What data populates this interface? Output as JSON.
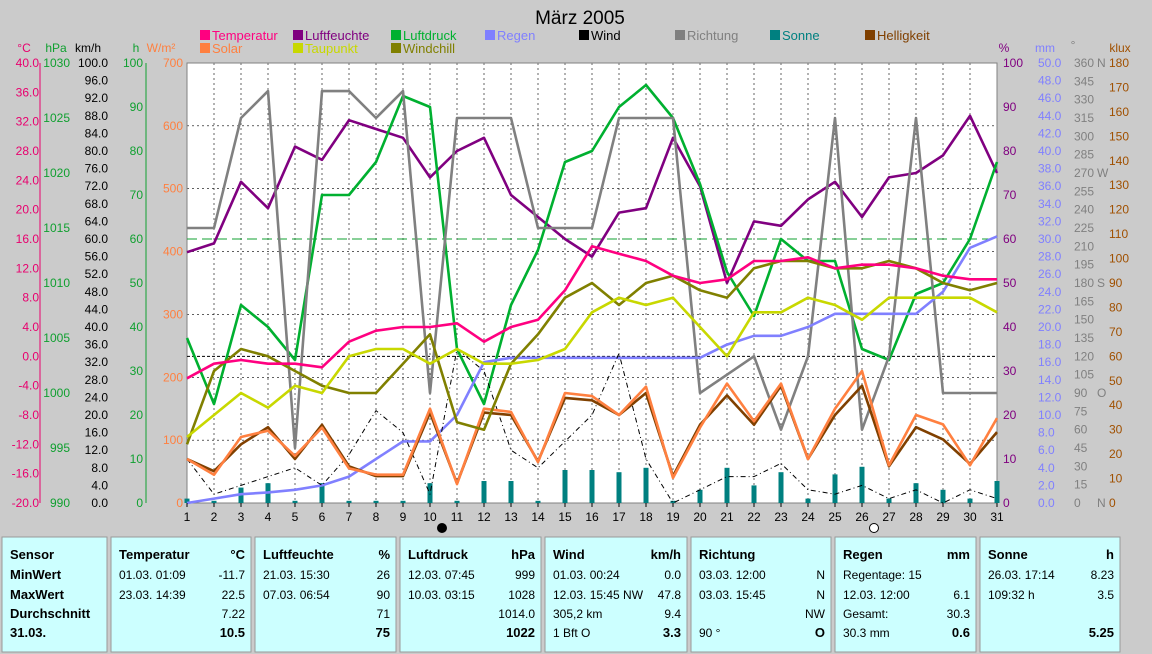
{
  "chart_data": {
    "type": "line",
    "title": "März 2005",
    "x": [
      1,
      2,
      3,
      4,
      5,
      6,
      7,
      8,
      9,
      10,
      11,
      12,
      13,
      14,
      15,
      16,
      17,
      18,
      19,
      20,
      21,
      22,
      23,
      24,
      25,
      26,
      27,
      28,
      29,
      30,
      31
    ],
    "axes": [
      {
        "id": "degC",
        "label": "°C",
        "color": "#e8006e",
        "min": -20,
        "max": 40,
        "ticks": [
          "40.0",
          "36.0",
          "32.0",
          "28.0",
          "24.0",
          "20.0",
          "16.0",
          "12.0",
          "8.0",
          "4.0",
          "0.0",
          "-4.0",
          "-8.0",
          "-12.0",
          "-16.0",
          "-20.0"
        ]
      },
      {
        "id": "hPa",
        "label": "hPa",
        "color": "#10a030",
        "min": 990,
        "max": 1030,
        "ticks": [
          "1030",
          "1025",
          "1020",
          "1015",
          "1010",
          "1005",
          "1000",
          "995",
          "990"
        ]
      },
      {
        "id": "kmh",
        "label": "km/h",
        "color": "#000000",
        "min": 0,
        "max": 100,
        "ticks": [
          "100.0",
          "96.0",
          "92.0",
          "88.0",
          "84.0",
          "80.0",
          "76.0",
          "72.0",
          "68.0",
          "64.0",
          "60.0",
          "56.0",
          "52.0",
          "48.0",
          "44.0",
          "40.0",
          "36.0",
          "32.0",
          "28.0",
          "24.0",
          "20.0",
          "16.0",
          "12.0",
          "8.0",
          "4.0",
          "0.0"
        ]
      },
      {
        "id": "h",
        "label": "h",
        "color": "#10a030",
        "min": 0,
        "max": 100,
        "ticks": [
          "100",
          "90",
          "80",
          "70",
          "60",
          "50",
          "40",
          "30",
          "20",
          "10",
          "0"
        ]
      },
      {
        "id": "wm2",
        "label": "W/m²",
        "color": "#ff8040",
        "min": 0,
        "max": 700,
        "ticks": [
          "700",
          "600",
          "500",
          "400",
          "300",
          "200",
          "100",
          "0"
        ]
      },
      {
        "id": "pct",
        "label": "%",
        "color": "#800080",
        "min": 0,
        "max": 100,
        "ticks": [
          "100",
          "90",
          "80",
          "70",
          "60",
          "50",
          "40",
          "30",
          "20",
          "10",
          "0"
        ]
      },
      {
        "id": "mm",
        "label": "mm",
        "color": "#8080ff",
        "min": 0,
        "max": 50,
        "ticks": [
          "50.0",
          "48.0",
          "46.0",
          "44.0",
          "42.0",
          "40.0",
          "38.0",
          "36.0",
          "34.0",
          "32.0",
          "30.0",
          "28.0",
          "26.0",
          "24.0",
          "22.0",
          "20.0",
          "18.0",
          "16.0",
          "14.0",
          "12.0",
          "10.0",
          "8.0",
          "6.0",
          "4.0",
          "2.0",
          "0.0"
        ]
      },
      {
        "id": "deg",
        "label": "°",
        "color": "#808080",
        "min": 0,
        "max": 360,
        "ticks": [
          "360",
          "345",
          "330",
          "315",
          "300",
          "285",
          "270",
          "255",
          "240",
          "225",
          "210",
          "195",
          "180",
          "165",
          "150",
          "135",
          "120",
          "105",
          "90",
          "75",
          "60",
          "45",
          "30",
          "15",
          "0"
        ]
      },
      {
        "id": "klux",
        "label": "klux",
        "color": "#a05000",
        "min": 0,
        "max": 180,
        "ticks": [
          "180",
          "170",
          "160",
          "150",
          "140",
          "130",
          "120",
          "110",
          "100",
          "90",
          "80",
          "70",
          "60",
          "50",
          "40",
          "30",
          "20",
          "10",
          "0"
        ]
      }
    ],
    "compass_labels": [
      "N",
      "W",
      "S",
      "O",
      "N"
    ],
    "legend": [
      {
        "name": "Temperatur",
        "color": "#ff0080"
      },
      {
        "name": "Luftfeuchte",
        "color": "#800080"
      },
      {
        "name": "Luftdruck",
        "color": "#00b030"
      },
      {
        "name": "Regen",
        "color": "#8080ff"
      },
      {
        "name": "Wind",
        "color": "#000000"
      },
      {
        "name": "Richtung",
        "color": "#808080"
      },
      {
        "name": "Sonne",
        "color": "#008080"
      },
      {
        "name": "Helligkeit",
        "color": "#804000"
      },
      {
        "name": "Solar",
        "color": "#ff8040"
      },
      {
        "name": "Taupunkt",
        "color": "#c8d800"
      },
      {
        "name": "Windchill",
        "color": "#808000"
      }
    ],
    "reference_lines": [
      {
        "axis": "hPa",
        "value": 1014,
        "color": "#10a030",
        "dash": "10,5"
      },
      {
        "axis": "degC",
        "value": 0,
        "color": "#000000",
        "dash": "3,2"
      }
    ],
    "series": [
      {
        "name": "Luftfeuchte",
        "axis": "pct",
        "color": "#800080",
        "values": [
          57,
          59,
          73,
          67,
          81,
          78,
          87,
          85,
          83,
          74,
          80,
          83,
          70,
          65,
          60,
          56,
          66,
          67,
          83,
          72,
          50,
          64,
          63,
          69,
          73,
          65,
          74,
          75,
          79,
          88,
          75
        ]
      },
      {
        "name": "Luftdruck",
        "axis": "hPa",
        "color": "#00b030",
        "values": [
          1005,
          999,
          1008,
          1006,
          1003,
          1018,
          1018,
          1021,
          1027,
          1026,
          1004,
          999,
          1008,
          1013,
          1021,
          1022,
          1026,
          1028,
          1025,
          1019,
          1011,
          1007,
          1014,
          1012,
          1012,
          1004,
          1003,
          1009,
          1010,
          1014,
          1021
        ]
      },
      {
        "name": "Richtung",
        "axis": "deg",
        "color": "#808080",
        "values": [
          225,
          225,
          315,
          337,
          45,
          337,
          337,
          315,
          337,
          90,
          315,
          315,
          315,
          225,
          225,
          225,
          315,
          315,
          315,
          90,
          105,
          120,
          60,
          120,
          315,
          60,
          120,
          315,
          90,
          90,
          90
        ]
      },
      {
        "name": "Regen",
        "axis": "mm",
        "color": "#8080ff",
        "values": [
          0,
          0.5,
          1,
          1.2,
          1.5,
          2,
          3,
          5,
          7,
          7,
          10,
          16,
          16.5,
          16.5,
          16.5,
          16.5,
          16.5,
          16.5,
          16.5,
          16.5,
          18,
          19,
          19,
          20,
          21.5,
          21.5,
          21.5,
          21.5,
          24,
          29,
          30.3
        ]
      },
      {
        "name": "Wind",
        "axis": "kmh",
        "color": "#000000",
        "dash": "5,3,1,3",
        "values": [
          10,
          2,
          4,
          6,
          8,
          4,
          11,
          21,
          16,
          2,
          35,
          30,
          12,
          8,
          14,
          20,
          34,
          10,
          0,
          3,
          6,
          6,
          9,
          3,
          2,
          4,
          1,
          3,
          0,
          3,
          1
        ]
      },
      {
        "name": "Helligkeit",
        "axis": "klux",
        "color": "#804000",
        "values": [
          18,
          13,
          24,
          31,
          18,
          32,
          15,
          11,
          11,
          37,
          8,
          37,
          36,
          17,
          43,
          42,
          36,
          45,
          11,
          32,
          44,
          32,
          48,
          18,
          36,
          48,
          15,
          31,
          26,
          16,
          29
        ]
      },
      {
        "name": "Solar",
        "axis": "wm2",
        "color": "#ff8040",
        "values": [
          70,
          45,
          105,
          115,
          75,
          120,
          55,
          45,
          45,
          150,
          30,
          150,
          145,
          65,
          175,
          170,
          140,
          185,
          40,
          120,
          190,
          130,
          190,
          70,
          150,
          210,
          60,
          140,
          125,
          60,
          135
        ]
      },
      {
        "name": "Windchill",
        "axis": "degC",
        "color": "#808000",
        "values": [
          -12,
          -2,
          1,
          0,
          -2,
          -4,
          -5,
          -5,
          -1,
          3,
          -9,
          -10,
          -1,
          3,
          8,
          10,
          7,
          10,
          11,
          9,
          8,
          12,
          13,
          13,
          12,
          12,
          13,
          12,
          10,
          9,
          10
        ]
      },
      {
        "name": "Taupunkt",
        "axis": "degC",
        "color": "#c8d800",
        "values": [
          -11,
          -8,
          -5,
          -7,
          -4,
          -5,
          0,
          1,
          1,
          -1,
          1,
          -1,
          -1,
          -0.5,
          1,
          6,
          8,
          7,
          8,
          4,
          0,
          6,
          6,
          8,
          7,
          5,
          8,
          8,
          8,
          8,
          6
        ]
      },
      {
        "name": "Temperatur",
        "axis": "degC",
        "color": "#ff0080",
        "values": [
          -3,
          -1,
          -0.5,
          -1,
          -1,
          -1.5,
          2,
          3.5,
          4,
          4,
          4.5,
          2,
          4,
          5,
          9,
          15,
          14,
          13,
          11,
          10,
          10.5,
          13,
          13,
          13.5,
          12,
          12.5,
          12.5,
          12,
          11,
          10.5,
          10.5
        ]
      }
    ],
    "bars": {
      "name": "Sonne",
      "axis": "h",
      "color": "#008080",
      "values": [
        1,
        0.5,
        3.5,
        4.5,
        0.5,
        4.5,
        0.5,
        0.5,
        0.5,
        4.5,
        0.5,
        5,
        5,
        0.5,
        7.5,
        7.5,
        7,
        8,
        0.5,
        3,
        8,
        4,
        7,
        1,
        6.5,
        8.23,
        1,
        4.5,
        3,
        1,
        5
      ]
    },
    "marker_days": [
      10,
      26
    ]
  },
  "stats": {
    "headers": [
      {
        "label": "Sensor",
        "unit": ""
      },
      {
        "label": "Temperatur",
        "unit": "°C"
      },
      {
        "label": "Luftfeuchte",
        "unit": "%"
      },
      {
        "label": "Luftdruck",
        "unit": "hPa"
      },
      {
        "label": "Wind",
        "unit": "km/h"
      },
      {
        "label": "Richtung",
        "unit": ""
      },
      {
        "label": "Regen",
        "unit": "mm"
      },
      {
        "label": "Sonne",
        "unit": "h"
      }
    ],
    "row_labels": [
      "MinWert",
      "MaxWert",
      "Durchschnitt",
      "31.03."
    ],
    "cells": [
      [
        [
          "01.03. 01:09",
          "-11.7"
        ],
        [
          "23.03. 14:39",
          "22.5"
        ],
        [
          "",
          "7.22"
        ],
        [
          "",
          "10.5"
        ]
      ],
      [
        [
          "21.03. 15:30",
          "26"
        ],
        [
          "07.03. 06:54",
          "90"
        ],
        [
          "",
          "71"
        ],
        [
          "",
          "75"
        ]
      ],
      [
        [
          "12.03. 07:45",
          "999"
        ],
        [
          "10.03. 03:15",
          "1028"
        ],
        [
          "",
          "1014.0"
        ],
        [
          "",
          "1022"
        ]
      ],
      [
        [
          "01.03. 00:24",
          "0.0"
        ],
        [
          "12.03. 15:45  NW",
          "47.8"
        ],
        [
          "305,2 km",
          "9.4"
        ],
        [
          "1 Bft O",
          "3.3"
        ]
      ],
      [
        [
          "03.03. 12:00",
          "N"
        ],
        [
          "03.03. 15:45",
          "N"
        ],
        [
          "",
          "NW"
        ],
        [
          "90 °",
          "O"
        ]
      ],
      [
        [
          "Regentage: 15",
          ""
        ],
        [
          "12.03. 12:00",
          "6.1"
        ],
        [
          "Gesamt:",
          "30.3"
        ],
        [
          "30.3 mm",
          "0.6"
        ]
      ],
      [
        [
          "26.03. 17:14",
          "8.23"
        ],
        [
          "109:32 h",
          "3.5"
        ],
        [
          "",
          ""
        ],
        [
          "",
          "5.25"
        ]
      ]
    ]
  }
}
